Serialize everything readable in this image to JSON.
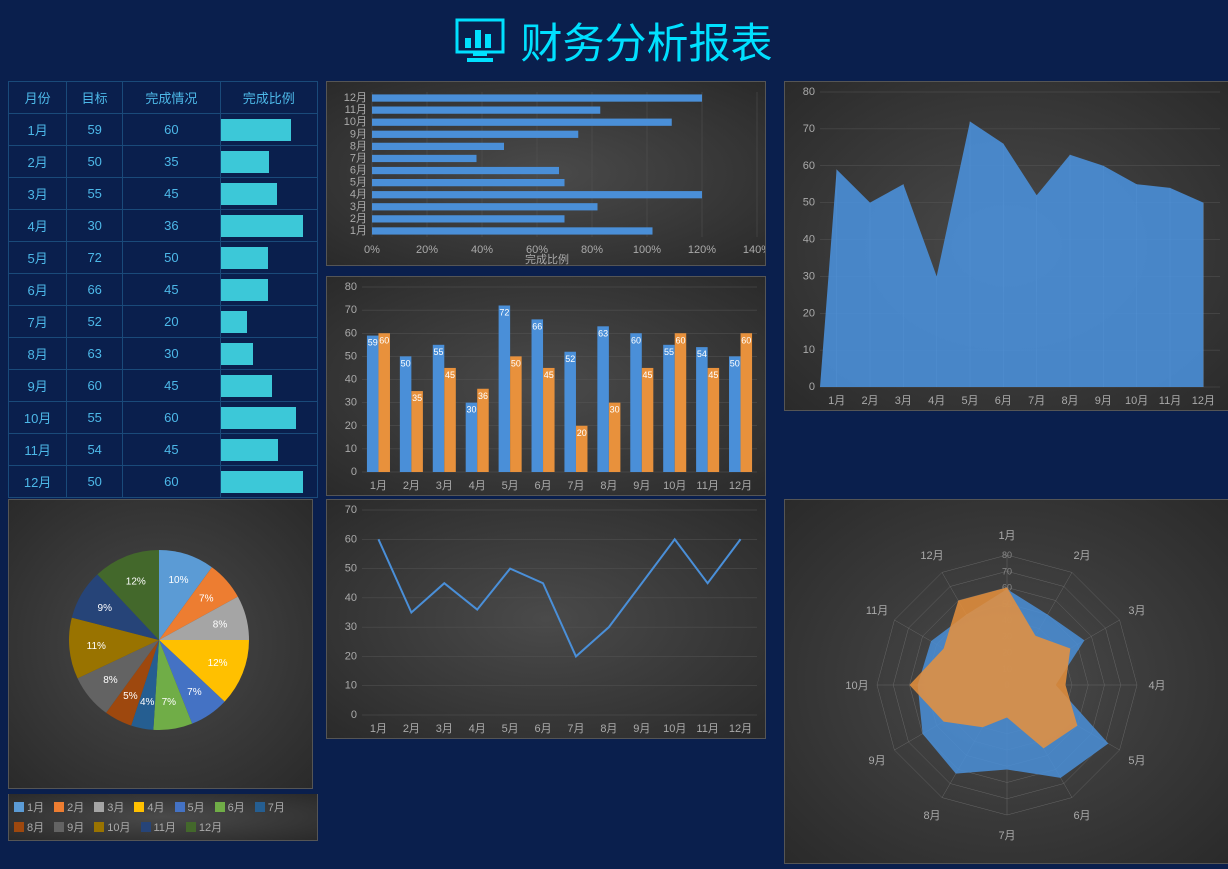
{
  "title": "财务分析报表",
  "months": [
    "1月",
    "2月",
    "3月",
    "4月",
    "5月",
    "6月",
    "7月",
    "8月",
    "9月",
    "10月",
    "11月",
    "12月"
  ],
  "table": {
    "headers": [
      "月份",
      "目标",
      "完成情况",
      "完成比例"
    ],
    "target": [
      59,
      50,
      55,
      30,
      72,
      66,
      52,
      63,
      60,
      55,
      54,
      50
    ],
    "actual": [
      60,
      35,
      45,
      36,
      50,
      45,
      20,
      30,
      45,
      60,
      45,
      60
    ],
    "spark_max": 140
  },
  "hbar": {
    "xlabel": "完成比例",
    "xmax": 140,
    "xstep": 20,
    "values": [
      102,
      70,
      82,
      120,
      70,
      68,
      38,
      48,
      75,
      109,
      83,
      120
    ],
    "color": "#4a8fd8",
    "grid": "#555",
    "text": "#aaa"
  },
  "grouped_bar": {
    "ymax": 80,
    "ystep": 10,
    "s1_color": "#4a8fd8",
    "s2_color": "#e8913c"
  },
  "line": {
    "ymax": 70,
    "ystep": 10,
    "values": [
      60,
      35,
      45,
      36,
      50,
      45,
      20,
      30,
      45,
      60,
      45,
      60
    ],
    "color": "#4a8fd8"
  },
  "area": {
    "ymax": 80,
    "ystep": 10,
    "values": [
      59,
      50,
      55,
      30,
      72,
      66,
      52,
      63,
      60,
      55,
      54,
      50
    ],
    "fill": "#4a8fd8"
  },
  "pie": {
    "values": [
      10,
      7,
      8,
      12,
      7,
      7,
      4,
      5,
      8,
      11,
      9,
      12
    ],
    "colors": [
      "#5b9bd5",
      "#ed7d31",
      "#a5a5a5",
      "#ffc000",
      "#4472c4",
      "#70ad47",
      "#255e91",
      "#9e480e",
      "#636363",
      "#997300",
      "#264478",
      "#43682b"
    ]
  },
  "radar": {
    "rmax": 80,
    "rstep": 10,
    "s1_color": "#4a8fd8",
    "s2_color": "#e8913c"
  },
  "bg": "#0a1f4d",
  "accent": "#00e0ff",
  "chart_bg": "#383838"
}
